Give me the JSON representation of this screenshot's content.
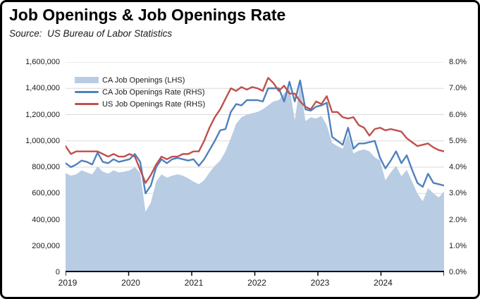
{
  "header": {
    "title": "Job Openings & Job Openings Rate",
    "source": "Source:  US Bureau of Labor Statistics"
  },
  "colors": {
    "area_fill": "#b8cce4",
    "ca_rate_line": "#4f81bd",
    "us_rate_line": "#c0504d",
    "gridline": "#d9d9d9",
    "axis_line": "#000000",
    "text": "#1a1a1a"
  },
  "chart_data": {
    "type": "area",
    "subtype": "combo-area-plus-lines",
    "title": "Job Openings & Job Openings Rate",
    "subtitle": "Source:  US Bureau of Labor Statistics",
    "x_unit": "month",
    "x_start": "2019-01",
    "x_end": "2024-12",
    "x_tick_labels": [
      "2019",
      "2020",
      "2021",
      "2022",
      "2023",
      "2024"
    ],
    "left_axis": {
      "min": 0,
      "max": 1600000,
      "step": 200000,
      "tick_labels": [
        "1,600,000",
        "1,400,000",
        "1,200,000",
        "1,000,000",
        "800,000",
        "600,000",
        "400,000",
        "200,000",
        "0"
      ]
    },
    "right_axis": {
      "min": 0,
      "max": 8,
      "step": 1,
      "tick_labels": [
        "8.0%",
        "7.0%",
        "6.0%",
        "5.0%",
        "4.0%",
        "3.0%",
        "2.0%",
        "1.0%",
        "0.0%"
      ],
      "unit": "%"
    },
    "grid": "horizontal",
    "legend_position": "top-left-inside",
    "series": [
      {
        "name": "CA Job Openings (LHS)",
        "type": "area",
        "axis": "left",
        "color": "#b8cce4",
        "values": [
          755000,
          735000,
          745000,
          775000,
          760000,
          745000,
          805000,
          765000,
          750000,
          775000,
          760000,
          765000,
          775000,
          800000,
          755000,
          460000,
          530000,
          690000,
          745000,
          720000,
          735000,
          745000,
          735000,
          715000,
          690000,
          670000,
          700000,
          760000,
          810000,
          850000,
          920000,
          1020000,
          1130000,
          1180000,
          1200000,
          1210000,
          1220000,
          1240000,
          1270000,
          1300000,
          1310000,
          1360000,
          1410000,
          1160000,
          1430000,
          1150000,
          1180000,
          1170000,
          1190000,
          1120000,
          985000,
          960000,
          940000,
          1050000,
          905000,
          925000,
          935000,
          920000,
          875000,
          850000,
          700000,
          760000,
          810000,
          730000,
          780000,
          690000,
          600000,
          540000,
          640000,
          600000,
          570000,
          615000
        ]
      },
      {
        "name": "CA Job Openings Rate (RHS)",
        "type": "line",
        "axis": "right",
        "color": "#4f81bd",
        "values": [
          4.15,
          4.0,
          4.1,
          4.25,
          4.2,
          4.1,
          4.55,
          4.2,
          4.15,
          4.3,
          4.2,
          4.25,
          4.3,
          4.5,
          4.2,
          3.0,
          3.3,
          4.0,
          4.3,
          4.15,
          4.3,
          4.35,
          4.3,
          4.25,
          4.3,
          4.05,
          4.3,
          4.65,
          5.0,
          5.4,
          5.45,
          6.1,
          6.4,
          6.35,
          6.55,
          6.55,
          6.55,
          6.5,
          7.0,
          7.0,
          7.0,
          6.5,
          7.25,
          6.5,
          7.3,
          6.2,
          6.15,
          6.3,
          6.35,
          6.45,
          5.15,
          5.0,
          4.85,
          5.5,
          4.7,
          4.9,
          4.9,
          4.95,
          5.0,
          4.35,
          3.95,
          4.25,
          4.6,
          4.15,
          4.45,
          3.9,
          3.4,
          3.25,
          3.75,
          3.4,
          3.35,
          3.3
        ]
      },
      {
        "name": "US Job Openings Rate (RHS)",
        "type": "line",
        "axis": "right",
        "color": "#c0504d",
        "values": [
          4.8,
          4.5,
          4.6,
          4.6,
          4.6,
          4.6,
          4.6,
          4.5,
          4.4,
          4.5,
          4.4,
          4.4,
          4.5,
          4.4,
          3.9,
          3.4,
          3.7,
          4.1,
          4.4,
          4.3,
          4.4,
          4.4,
          4.5,
          4.5,
          4.6,
          4.6,
          5.0,
          5.5,
          5.9,
          6.2,
          6.6,
          7.0,
          6.9,
          7.05,
          6.95,
          7.05,
          7.0,
          6.9,
          7.4,
          7.2,
          6.9,
          7.1,
          6.8,
          6.8,
          6.5,
          6.3,
          6.2,
          6.5,
          6.4,
          6.7,
          6.1,
          6.1,
          5.9,
          5.85,
          5.9,
          5.6,
          5.5,
          5.2,
          5.45,
          5.5,
          5.4,
          5.45,
          5.4,
          5.35,
          5.1,
          4.95,
          4.8,
          4.85,
          4.9,
          4.75,
          4.65,
          4.6
        ]
      }
    ]
  }
}
